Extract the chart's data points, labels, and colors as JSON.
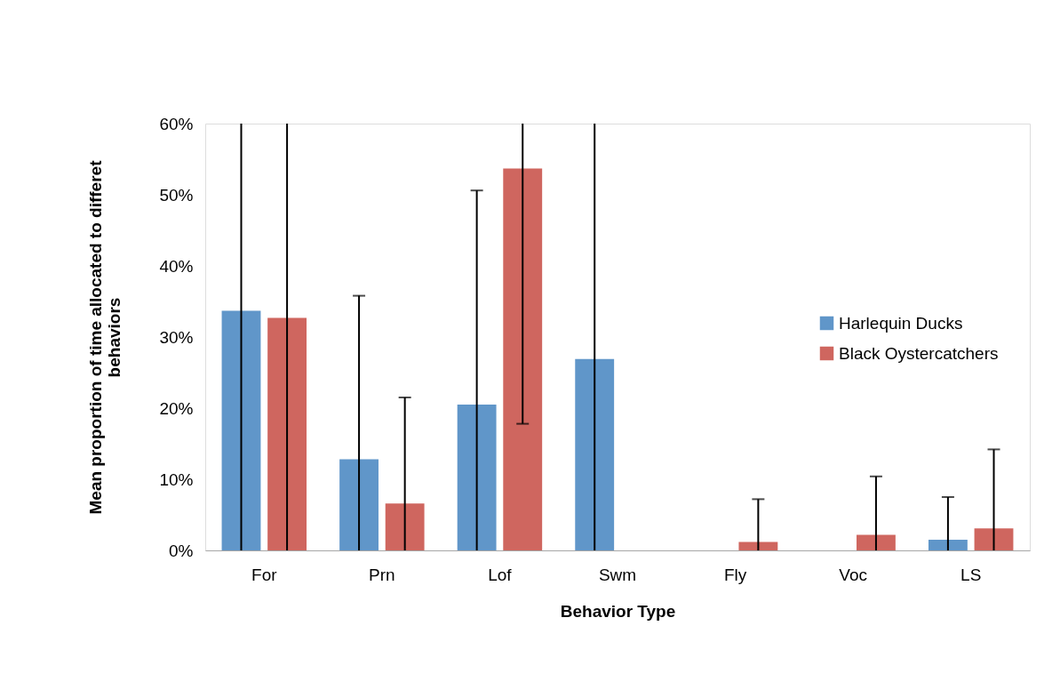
{
  "chart_data": {
    "type": "bar",
    "xlabel": "Behavior Type",
    "ylabel": "Mean  proportion of time allocated to differet behaviors",
    "categories": [
      "For",
      "Prn",
      "Lof",
      "Swm",
      "Fly",
      "Voc",
      "LS"
    ],
    "series": [
      {
        "name": "Harlequin Ducks",
        "color": "#6096c9",
        "values": [
          33.7,
          12.8,
          20.5,
          26.9,
          0,
          0,
          1.5
        ],
        "errors": [
          [
            0,
            60
          ],
          [
            0,
            35.8
          ],
          [
            0,
            50.6
          ],
          [
            0,
            60
          ],
          null,
          null,
          [
            0,
            7.5
          ]
        ]
      },
      {
        "name": "Black Oystercatchers",
        "color": "#cf665f",
        "values": [
          32.7,
          6.6,
          53.7,
          0,
          1.2,
          2.2,
          3.1
        ],
        "errors": [
          [
            0,
            60
          ],
          [
            0,
            21.5
          ],
          [
            17.8,
            60
          ],
          null,
          [
            0,
            7.2
          ],
          [
            0,
            10.4
          ],
          [
            0,
            14.2
          ]
        ]
      }
    ],
    "ylim": [
      0,
      60
    ],
    "yticks": [
      {
        "value": 0,
        "label": "0%"
      },
      {
        "value": 10,
        "label": "10%"
      },
      {
        "value": 20,
        "label": "20%"
      },
      {
        "value": 30,
        "label": "30%"
      },
      {
        "value": 40,
        "label": "40%"
      },
      {
        "value": 50,
        "label": "50%"
      },
      {
        "value": 60,
        "label": "60%"
      }
    ],
    "grid": false,
    "legend": "right"
  }
}
